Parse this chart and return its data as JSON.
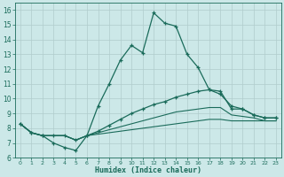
{
  "xlabel": "Humidex (Indice chaleur)",
  "bg_color": "#cce8e8",
  "grid_color": "#b0cccc",
  "line_color": "#1a6b5a",
  "xlim": [
    -0.5,
    23.5
  ],
  "ylim": [
    6,
    16.5
  ],
  "xticks": [
    0,
    1,
    2,
    3,
    4,
    5,
    6,
    7,
    8,
    9,
    10,
    11,
    12,
    13,
    14,
    15,
    16,
    17,
    18,
    19,
    20,
    21,
    22,
    23
  ],
  "yticks": [
    6,
    7,
    8,
    9,
    10,
    11,
    12,
    13,
    14,
    15,
    16
  ],
  "curve1_x": [
    0,
    1,
    2,
    3,
    4,
    5,
    6,
    7,
    8,
    9,
    10,
    11,
    12,
    13,
    14,
    15,
    16,
    17,
    18,
    19,
    20,
    21,
    22,
    23
  ],
  "curve1_y": [
    8.3,
    7.7,
    7.5,
    7.0,
    6.7,
    6.5,
    7.5,
    9.5,
    11.0,
    12.6,
    13.6,
    13.1,
    15.8,
    15.1,
    14.9,
    13.0,
    12.1,
    10.6,
    10.5,
    9.3,
    9.3,
    8.9,
    8.7,
    8.7
  ],
  "curve2_x": [
    0,
    1,
    2,
    3,
    4,
    5,
    6,
    7,
    8,
    9,
    10,
    11,
    12,
    13,
    14,
    15,
    16,
    17,
    18,
    19,
    20,
    21,
    22,
    23
  ],
  "curve2_y": [
    8.3,
    7.7,
    7.5,
    7.5,
    7.5,
    7.2,
    7.5,
    7.8,
    8.2,
    8.6,
    9.0,
    9.3,
    9.6,
    9.8,
    10.1,
    10.3,
    10.5,
    10.6,
    10.3,
    9.5,
    9.3,
    8.9,
    8.7,
    8.7
  ],
  "curve3_x": [
    0,
    1,
    2,
    3,
    4,
    5,
    6,
    7,
    8,
    9,
    10,
    11,
    12,
    13,
    14,
    15,
    16,
    17,
    18,
    19,
    20,
    21,
    22,
    23
  ],
  "curve3_y": [
    8.3,
    7.7,
    7.5,
    7.5,
    7.5,
    7.2,
    7.5,
    7.7,
    7.9,
    8.1,
    8.3,
    8.5,
    8.7,
    8.9,
    9.1,
    9.2,
    9.3,
    9.4,
    9.4,
    8.9,
    8.8,
    8.7,
    8.5,
    8.5
  ],
  "curve4_x": [
    0,
    1,
    2,
    3,
    4,
    5,
    6,
    7,
    8,
    9,
    10,
    11,
    12,
    13,
    14,
    15,
    16,
    17,
    18,
    19,
    20,
    21,
    22,
    23
  ],
  "curve4_y": [
    8.3,
    7.7,
    7.5,
    7.5,
    7.5,
    7.2,
    7.5,
    7.6,
    7.7,
    7.8,
    7.9,
    8.0,
    8.1,
    8.2,
    8.3,
    8.4,
    8.5,
    8.6,
    8.6,
    8.5,
    8.5,
    8.5,
    8.5,
    8.5
  ]
}
